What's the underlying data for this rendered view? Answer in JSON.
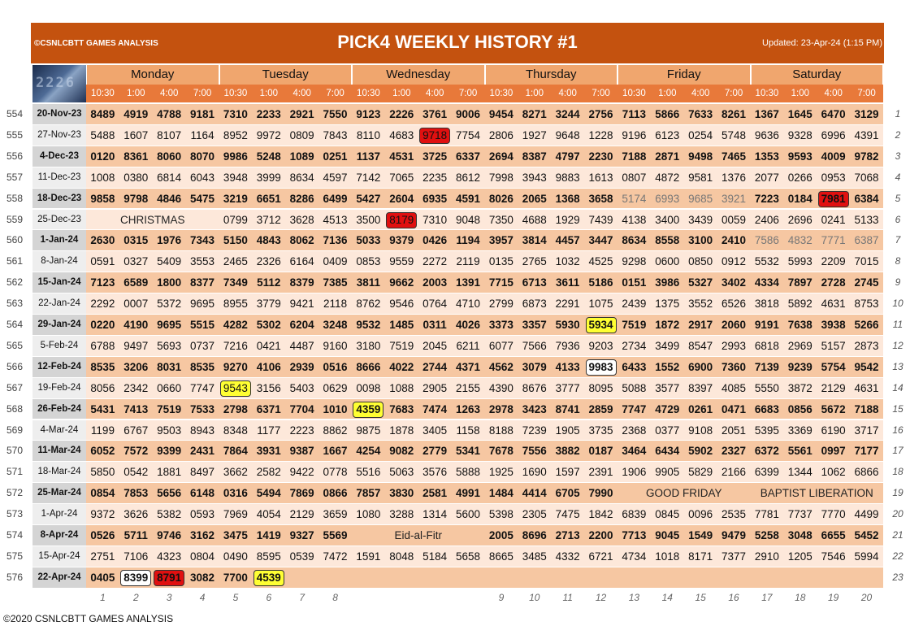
{
  "header": {
    "copyright": "©CSNLCBTT GAMES ANALYSIS",
    "title": "PICK4 WEEKLY HISTORY #1",
    "updated": "Updated: 23-Apr-24 (1:15 PM)"
  },
  "logo": {
    "digits": "2226"
  },
  "days": [
    "Monday",
    "Tuesday",
    "Wednesday",
    "Thursday",
    "Friday",
    "Saturday"
  ],
  "times": [
    "10:30",
    "1:00",
    "4:00",
    "7:00"
  ],
  "rows": [
    {
      "n": "554",
      "date": "20-Nov-23",
      "bold": true,
      "r": "1",
      "cells": [
        "8489",
        "4919",
        "4788",
        "9181",
        "7310",
        "2233",
        "2921",
        "7550",
        "9123",
        "2226",
        "3761",
        "9006",
        "9454",
        "8271",
        "3244",
        "2756",
        "7113",
        "5866",
        "7633",
        "8261",
        "1367",
        "1645",
        "6470",
        "3129"
      ]
    },
    {
      "n": "555",
      "date": "27-Nov-23",
      "bold": false,
      "r": "2",
      "cells": [
        "5488",
        "1607",
        "8107",
        "1164",
        "8952",
        "9972",
        "0809",
        "7843",
        "8110",
        "4683",
        "9718",
        "7754",
        "2806",
        "1927",
        "9648",
        "1228",
        "9196",
        "6123",
        "0254",
        "5748",
        "9636",
        "9328",
        "6996",
        "4391"
      ]
    },
    {
      "n": "556",
      "date": "4-Dec-23",
      "bold": true,
      "r": "3",
      "cells": [
        "0120",
        "8361",
        "8060",
        "8070",
        "9986",
        "5248",
        "1089",
        "0251",
        "1137",
        "4531",
        "3725",
        "6337",
        "2694",
        "8387",
        "4797",
        "2230",
        "7188",
        "2871",
        "9498",
        "7465",
        "1353",
        "9593",
        "4009",
        "9782"
      ]
    },
    {
      "n": "557",
      "date": "11-Dec-23",
      "bold": false,
      "r": "4",
      "cells": [
        "1008",
        "0380",
        "6814",
        "6043",
        "3948",
        "3999",
        "8634",
        "4597",
        "7142",
        "7065",
        "2235",
        "8612",
        "7998",
        "3943",
        "9883",
        "1613",
        "0807",
        "4872",
        "9581",
        "1376",
        "2077",
        "0266",
        "0953",
        "7068"
      ]
    },
    {
      "n": "558",
      "date": "18-Dec-23",
      "bold": true,
      "r": "5",
      "cells": [
        "9858",
        "9798",
        "4846",
        "5475",
        "3219",
        "6651",
        "8286",
        "6499",
        "5427",
        "2604",
        "6935",
        "4591",
        "8026",
        "2065",
        "1368",
        "3658",
        "5174",
        "6993",
        "9685",
        "3921",
        "7223",
        "0184",
        "7981",
        "6384"
      ]
    },
    {
      "n": "559",
      "date": "25-Dec-23",
      "bold": false,
      "r": "6",
      "cells": [
        "",
        "",
        "",
        "",
        "0799",
        "3712",
        "3628",
        "4513",
        "3500",
        "8179",
        "7310",
        "9048",
        "7350",
        "4688",
        "1929",
        "7439",
        "4138",
        "3400",
        "3439",
        "0059",
        "2406",
        "2696",
        "0241",
        "5133"
      ]
    },
    {
      "n": "560",
      "date": "1-Jan-24",
      "bold": true,
      "r": "7",
      "cells": [
        "2630",
        "0315",
        "1976",
        "7343",
        "5150",
        "4843",
        "8062",
        "7136",
        "5033",
        "9379",
        "0426",
        "1194",
        "3957",
        "3814",
        "4457",
        "3447",
        "8634",
        "8558",
        "3100",
        "2410",
        "7586",
        "4832",
        "7771",
        "6387"
      ]
    },
    {
      "n": "561",
      "date": "8-Jan-24",
      "bold": false,
      "r": "8",
      "cells": [
        "0591",
        "0327",
        "5409",
        "3553",
        "2465",
        "2326",
        "6164",
        "0409",
        "0853",
        "9559",
        "2272",
        "2119",
        "0135",
        "2765",
        "1032",
        "4525",
        "9298",
        "0600",
        "0850",
        "0912",
        "5532",
        "5993",
        "2209",
        "7015"
      ]
    },
    {
      "n": "562",
      "date": "15-Jan-24",
      "bold": true,
      "r": "9",
      "cells": [
        "7123",
        "6589",
        "1800",
        "8377",
        "7349",
        "5112",
        "8379",
        "7385",
        "3811",
        "9662",
        "2003",
        "1391",
        "7715",
        "6713",
        "3611",
        "5186",
        "0151",
        "3986",
        "5327",
        "3402",
        "4334",
        "7897",
        "2728",
        "2745"
      ]
    },
    {
      "n": "563",
      "date": "22-Jan-24",
      "bold": false,
      "r": "10",
      "cells": [
        "2292",
        "0007",
        "5372",
        "9695",
        "8955",
        "3779",
        "9421",
        "2118",
        "8762",
        "9546",
        "0764",
        "4710",
        "2799",
        "6873",
        "2291",
        "1075",
        "2439",
        "1375",
        "3552",
        "6526",
        "3818",
        "5892",
        "4631",
        "8753"
      ]
    },
    {
      "n": "564",
      "date": "29-Jan-24",
      "bold": true,
      "r": "11",
      "cells": [
        "0220",
        "4190",
        "9695",
        "5515",
        "4282",
        "5302",
        "6204",
        "3248",
        "9532",
        "1485",
        "0311",
        "4026",
        "3373",
        "3357",
        "5930",
        "5934",
        "7519",
        "1872",
        "2917",
        "2060",
        "9191",
        "7638",
        "3938",
        "5266"
      ]
    },
    {
      "n": "565",
      "date": "5-Feb-24",
      "bold": false,
      "r": "12",
      "cells": [
        "6788",
        "9497",
        "5693",
        "0737",
        "7216",
        "0421",
        "4487",
        "9160",
        "3180",
        "7519",
        "2045",
        "6211",
        "6077",
        "7566",
        "7936",
        "9203",
        "2734",
        "3499",
        "8547",
        "2993",
        "6818",
        "2969",
        "5157",
        "2873"
      ]
    },
    {
      "n": "566",
      "date": "12-Feb-24",
      "bold": true,
      "r": "13",
      "cells": [
        "8535",
        "3206",
        "8031",
        "8535",
        "9270",
        "4106",
        "2939",
        "0516",
        "8666",
        "4022",
        "2744",
        "4371",
        "4562",
        "3079",
        "4133",
        "9983",
        "6433",
        "1552",
        "6900",
        "7360",
        "7139",
        "9239",
        "5754",
        "9542"
      ]
    },
    {
      "n": "567",
      "date": "19-Feb-24",
      "bold": false,
      "r": "14",
      "cells": [
        "8056",
        "2342",
        "0660",
        "7747",
        "9543",
        "3156",
        "5403",
        "0629",
        "0098",
        "1088",
        "2905",
        "2155",
        "4390",
        "8676",
        "3777",
        "8095",
        "5088",
        "3577",
        "8397",
        "4085",
        "5550",
        "3872",
        "2129",
        "4631"
      ]
    },
    {
      "n": "568",
      "date": "26-Feb-24",
      "bold": true,
      "r": "15",
      "cells": [
        "5431",
        "7413",
        "7519",
        "7533",
        "2798",
        "6371",
        "7704",
        "1010",
        "4359",
        "7683",
        "7474",
        "1263",
        "2978",
        "3423",
        "8741",
        "2859",
        "7747",
        "4729",
        "0261",
        "0471",
        "6683",
        "0856",
        "5672",
        "7188"
      ]
    },
    {
      "n": "569",
      "date": "4-Mar-24",
      "bold": false,
      "r": "16",
      "cells": [
        "1199",
        "6767",
        "9503",
        "8943",
        "8348",
        "1177",
        "2223",
        "8862",
        "9875",
        "1878",
        "3405",
        "1158",
        "8188",
        "7239",
        "1905",
        "3735",
        "2368",
        "0377",
        "9108",
        "2051",
        "5395",
        "3369",
        "6190",
        "3717"
      ]
    },
    {
      "n": "570",
      "date": "11-Mar-24",
      "bold": true,
      "r": "17",
      "cells": [
        "6052",
        "7572",
        "9399",
        "2431",
        "7864",
        "3931",
        "9387",
        "1667",
        "4254",
        "9082",
        "2779",
        "5341",
        "7678",
        "7556",
        "3882",
        "0187",
        "3464",
        "6434",
        "5902",
        "2327",
        "6372",
        "5561",
        "0997",
        "7177"
      ]
    },
    {
      "n": "571",
      "date": "18-Mar-24",
      "bold": false,
      "r": "18",
      "cells": [
        "5850",
        "0542",
        "1881",
        "8497",
        "3662",
        "2582",
        "9422",
        "0778",
        "5516",
        "5063",
        "3576",
        "5888",
        "1925",
        "1690",
        "1597",
        "2391",
        "1906",
        "9905",
        "5829",
        "2166",
        "6399",
        "1344",
        "1062",
        "6866"
      ]
    },
    {
      "n": "572",
      "date": "25-Mar-24",
      "bold": true,
      "r": "19",
      "cells": [
        "0854",
        "7853",
        "5656",
        "6148",
        "0316",
        "5494",
        "7869",
        "0866",
        "7857",
        "3830",
        "2581",
        "4991",
        "1484",
        "4414",
        "6705",
        "7990",
        "",
        "",
        "",
        "",
        "",
        "",
        "",
        ""
      ]
    },
    {
      "n": "573",
      "date": "1-Apr-24",
      "bold": false,
      "r": "20",
      "cells": [
        "9372",
        "3626",
        "5382",
        "0593",
        "7969",
        "4054",
        "2129",
        "3659",
        "1080",
        "3288",
        "1314",
        "5600",
        "5398",
        "2305",
        "7475",
        "1842",
        "6839",
        "0845",
        "0096",
        "2535",
        "7781",
        "7737",
        "7770",
        "4499"
      ]
    },
    {
      "n": "574",
      "date": "8-Apr-24",
      "bold": true,
      "r": "21",
      "cells": [
        "0526",
        "5711",
        "9746",
        "3162",
        "3475",
        "1419",
        "9327",
        "5569",
        "",
        "",
        "",
        "",
        "2005",
        "8696",
        "2713",
        "2200",
        "7713",
        "9045",
        "1549",
        "9479",
        "5258",
        "3048",
        "6655",
        "5452"
      ]
    },
    {
      "n": "575",
      "date": "15-Apr-24",
      "bold": false,
      "r": "22",
      "cells": [
        "2751",
        "7106",
        "4323",
        "0804",
        "0490",
        "8595",
        "0539",
        "7472",
        "1591",
        "8048",
        "5184",
        "5658",
        "8665",
        "3485",
        "4332",
        "6721",
        "4734",
        "1018",
        "8171",
        "7377",
        "2910",
        "1205",
        "7546",
        "5994"
      ]
    },
    {
      "n": "576",
      "date": "22-Apr-24",
      "bold": true,
      "r": "23",
      "cells": [
        "0405",
        "8399",
        "8791",
        "3082",
        "7700",
        "4539",
        "",
        "",
        "",
        "",
        "",
        "",
        "",
        "",
        "",
        "",
        "",
        "",
        "",
        "",
        "",
        "",
        "",
        ""
      ]
    }
  ],
  "spans": [
    {
      "row": 5,
      "col": 0,
      "len": 4,
      "text": "CHRISTMAS"
    },
    {
      "row": 18,
      "col": 16,
      "len": 4,
      "text": "GOOD FRIDAY"
    },
    {
      "row": 18,
      "col": 20,
      "len": 4,
      "text": "BAPTIST LIBERATION"
    },
    {
      "row": 20,
      "col": 8,
      "len": 4,
      "text": "Eid-al-Fitr"
    }
  ],
  "highlights": [
    {
      "row": 1,
      "col": 10,
      "style": "red"
    },
    {
      "row": 4,
      "col": 22,
      "style": "red"
    },
    {
      "row": 5,
      "col": 9,
      "style": "red"
    },
    {
      "row": 10,
      "col": 15,
      "style": "yellow"
    },
    {
      "row": 12,
      "col": 15,
      "style": "white"
    },
    {
      "row": 13,
      "col": 4,
      "style": "yellow"
    },
    {
      "row": 14,
      "col": 8,
      "style": "yellow"
    },
    {
      "row": 22,
      "col": 1,
      "style": "white"
    },
    {
      "row": 22,
      "col": 2,
      "style": "red"
    },
    {
      "row": 22,
      "col": 5,
      "style": "yellow"
    }
  ],
  "faded": [
    {
      "row": 4,
      "cols": [
        16,
        17,
        18,
        19
      ]
    },
    {
      "row": 6,
      "cols": [
        20,
        21,
        22,
        23
      ]
    }
  ],
  "column_numbers": [
    "1",
    "2",
    "3",
    "4",
    "5",
    "6",
    "7",
    "8",
    "",
    "",
    "",
    "",
    "9",
    "10",
    "11",
    "12",
    "13",
    "14",
    "15",
    "16",
    "17",
    "18",
    "19",
    "20"
  ],
  "footer": {
    "copyright": "©2020 CSNLCBTT GAMES ANALYSIS"
  },
  "colors": {
    "header": "#c4520f",
    "day_header": "#f0a66e",
    "time_header": "#e8793a",
    "row_dark": "#f6c7a2",
    "row_light": "#fde8da",
    "date_dark": "#d4d4d4",
    "date_light": "#eeeeee"
  }
}
